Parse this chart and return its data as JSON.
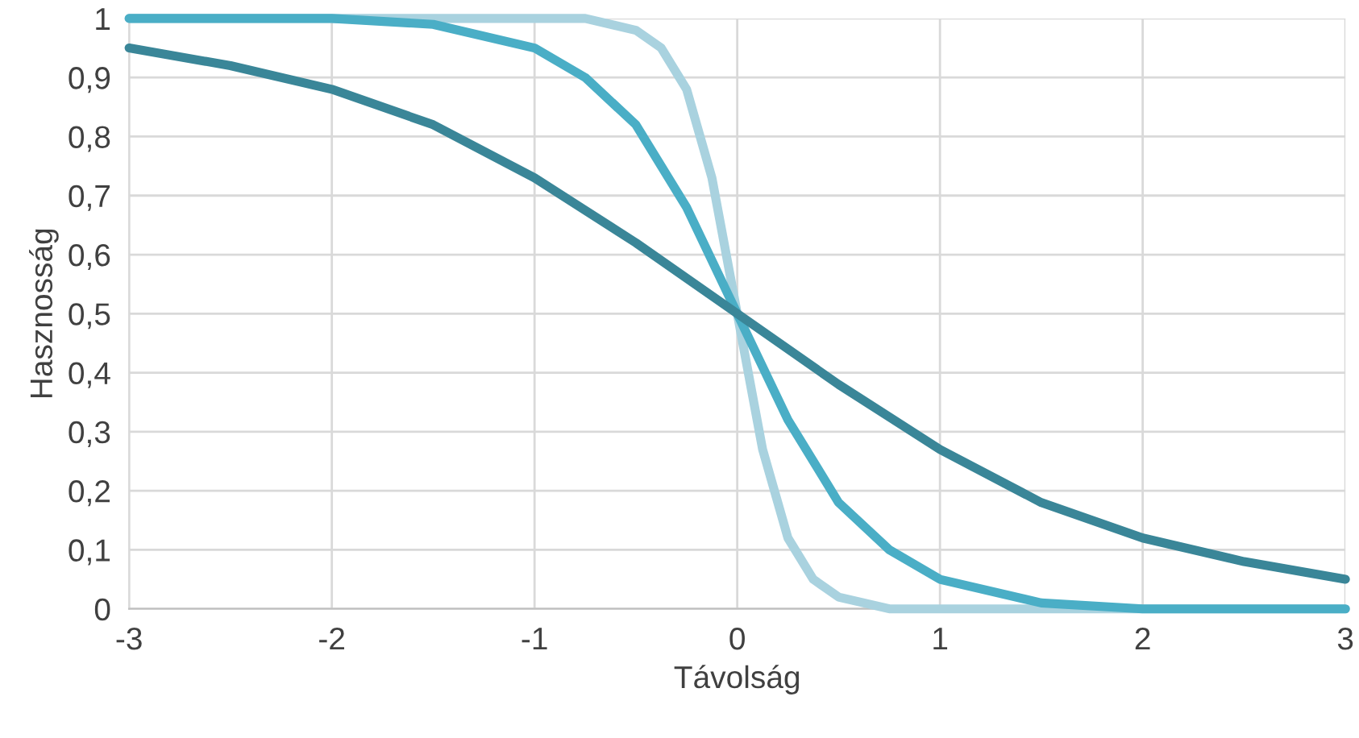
{
  "chart_data": {
    "type": "line",
    "xlabel": "Távolság",
    "ylabel": "Hasznosság",
    "xlim": [
      -3,
      3
    ],
    "xticks": [
      -3,
      -2,
      -1,
      0,
      1,
      2,
      3
    ],
    "ylim": [
      0,
      1
    ],
    "yticks": [
      0,
      {
        "value": 0.1,
        "label": "0,1"
      },
      {
        "value": 0.2,
        "label": "0,2"
      },
      {
        "value": 0.3,
        "label": "0,3"
      },
      {
        "value": 0.4,
        "label": "0,4"
      },
      {
        "value": 0.5,
        "label": "0,5"
      },
      {
        "value": 0.6,
        "label": "0,6"
      },
      {
        "value": 0.7,
        "label": "0,7"
      },
      {
        "value": 0.8,
        "label": "0,8"
      },
      {
        "value": 0.9,
        "label": "0,9"
      },
      1
    ],
    "grid": true,
    "marker": "none",
    "line_style": "solid",
    "series": [
      {
        "color": "#a9d2df",
        "x": [
          -3,
          -1,
          -0.75,
          -0.5,
          -0.375,
          -0.25,
          -0.125,
          0,
          0.125,
          0.25,
          0.375,
          0.5,
          0.75,
          1,
          3
        ],
        "values": [
          1.0,
          1.0,
          1.0,
          0.98,
          0.95,
          0.88,
          0.73,
          0.5,
          0.27,
          0.12,
          0.05,
          0.02,
          0.0,
          0.0,
          0.0
        ]
      },
      {
        "color": "#4aaec6",
        "x": [
          -3,
          -2,
          -1.5,
          -1,
          -0.75,
          -0.5,
          -0.25,
          0,
          0.25,
          0.5,
          0.75,
          1,
          1.5,
          2,
          3
        ],
        "values": [
          1.0,
          1.0,
          0.99,
          0.95,
          0.9,
          0.82,
          0.68,
          0.5,
          0.32,
          0.18,
          0.1,
          0.05,
          0.01,
          0.0,
          0.0
        ]
      },
      {
        "color": "#3a8698",
        "x": [
          -3,
          -2.5,
          -2,
          -1.5,
          -1,
          -0.5,
          0,
          0.5,
          1,
          1.5,
          2,
          2.5,
          3
        ],
        "values": [
          0.95,
          0.92,
          0.88,
          0.82,
          0.73,
          0.62,
          0.5,
          0.38,
          0.27,
          0.18,
          0.12,
          0.08,
          0.05
        ]
      }
    ]
  }
}
